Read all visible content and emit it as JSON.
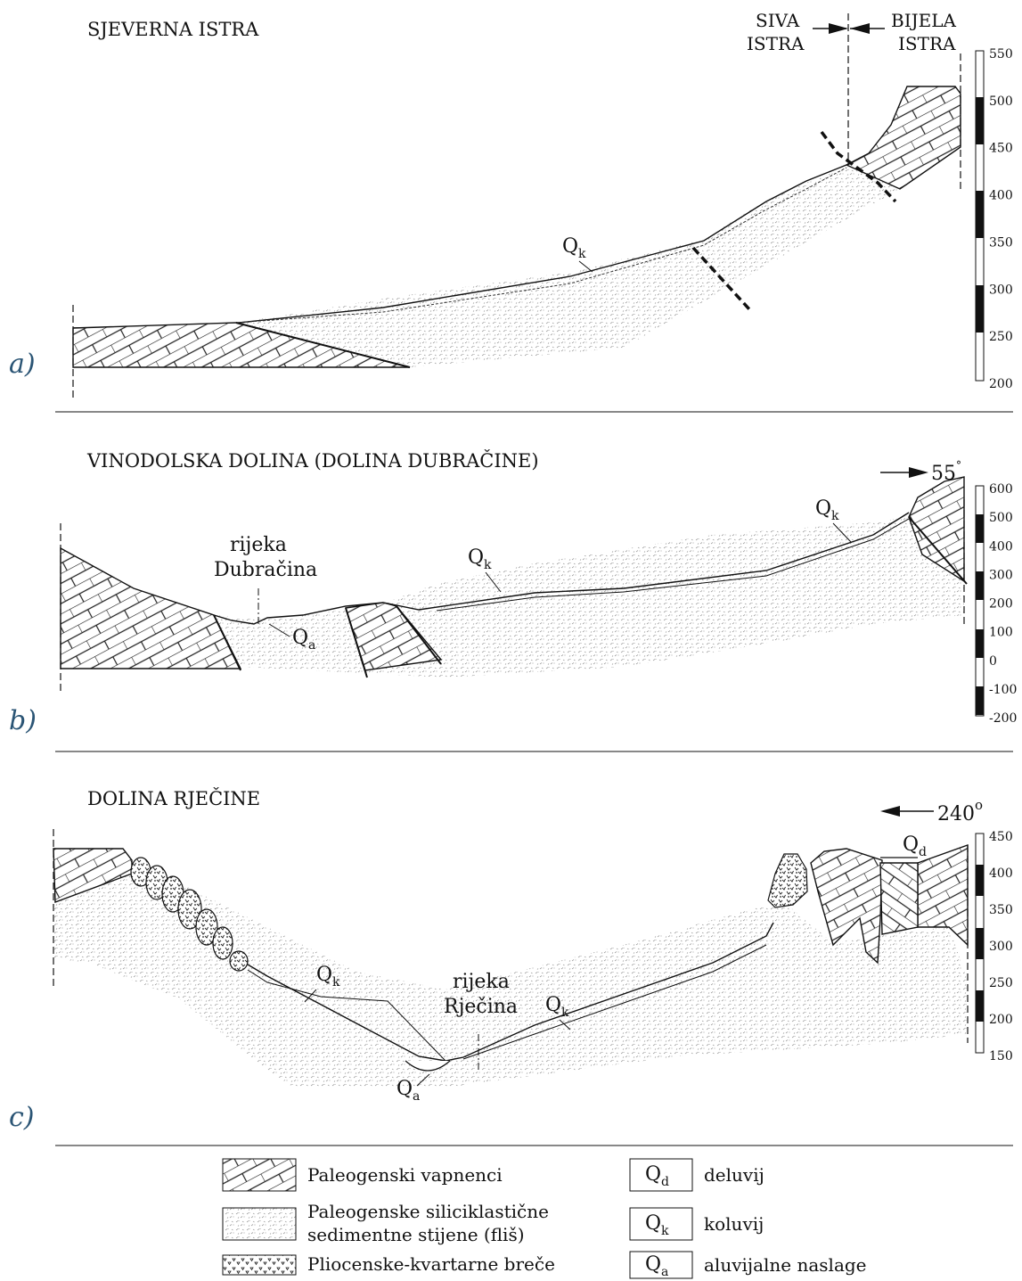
{
  "panels": [
    {
      "letter": "a)",
      "title": "SJEVERNA ISTRA",
      "labels": [
        "Q",
        "k"
      ],
      "ticks": [
        "550",
        "500",
        "450",
        "400",
        "350",
        "300",
        "250",
        "200"
      ],
      "zones": {
        "left_top": "SIVA",
        "left_bottom": "ISTRA",
        "right_top": "BIJELA",
        "right_bottom": "ISTRA"
      }
    },
    {
      "letter": "b)",
      "title": "VINODOLSKA DOLINA (DOLINA DUBRAČINE)",
      "direction": "55",
      "degree": "°",
      "river_line1": "rijeka",
      "river_line2": "Dubračina",
      "ticks": [
        "600",
        "500",
        "400",
        "300",
        "200",
        "100",
        "0",
        "-100",
        "-200"
      ]
    },
    {
      "letter": "c)",
      "title": "DOLINA RJEČINE",
      "direction": "240",
      "degree": "o",
      "river_line1": "rijeka",
      "river_line2": "Rječina",
      "ticks": [
        "450",
        "400",
        "350",
        "300",
        "250",
        "200",
        "150"
      ]
    }
  ],
  "q_letter": "Q",
  "subs": {
    "k": "k",
    "a": "a",
    "d": "d"
  },
  "legend": {
    "limestone": "Paleogenski vapnenci",
    "flysch_line1": "Paleogenske siliciklastične",
    "flysch_line2": "sedimentne stijene (fliš)",
    "breccia": "Pliocenske-kvartarne breče",
    "qd_label": "deluvij",
    "qk_label": "koluvij",
    "qa_label": "aluvijalne naslage"
  }
}
